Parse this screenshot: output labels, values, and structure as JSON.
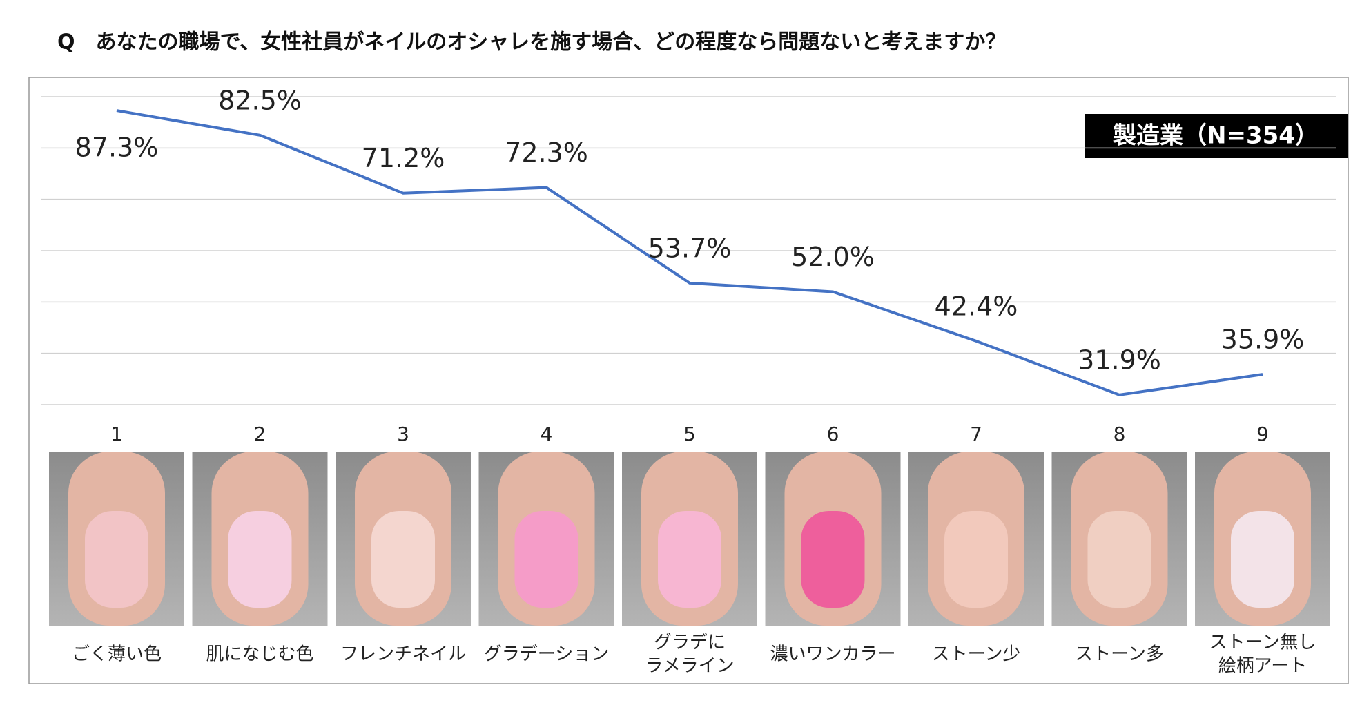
{
  "chart_data": {
    "type": "line",
    "title": "Q　あなたの職場で、女性社員がネイルのオシャレを施す場合、どの程度なら問題ないと考えますか？",
    "badge": "製造業（N=354）",
    "categories": [
      "1",
      "2",
      "3",
      "4",
      "5",
      "6",
      "7",
      "8",
      "9"
    ],
    "item_labels": [
      [
        "ごく薄い色"
      ],
      [
        "肌になじむ色"
      ],
      [
        "フレンチネイル"
      ],
      [
        "グラデーション"
      ],
      [
        "グラデに",
        "ラメライン"
      ],
      [
        "濃いワンカラー"
      ],
      [
        "ストーン少"
      ],
      [
        "ストーン多"
      ],
      [
        "ストーン無し",
        "絵柄アート"
      ]
    ],
    "series": [
      {
        "color": "#4472c4",
        "values": [
          87.3,
          82.5,
          71.2,
          72.3,
          53.7,
          52.0,
          42.4,
          31.9,
          35.9
        ],
        "value_labels": [
          "87.3%",
          "82.5%",
          "71.2%",
          "72.3%",
          "53.7%",
          "52.0%",
          "42.4%",
          "31.9%",
          "35.9%"
        ]
      }
    ],
    "ylim": [
      30,
      90
    ],
    "yticks": [
      30,
      40,
      50,
      60,
      70,
      80,
      90
    ],
    "grid": true
  }
}
